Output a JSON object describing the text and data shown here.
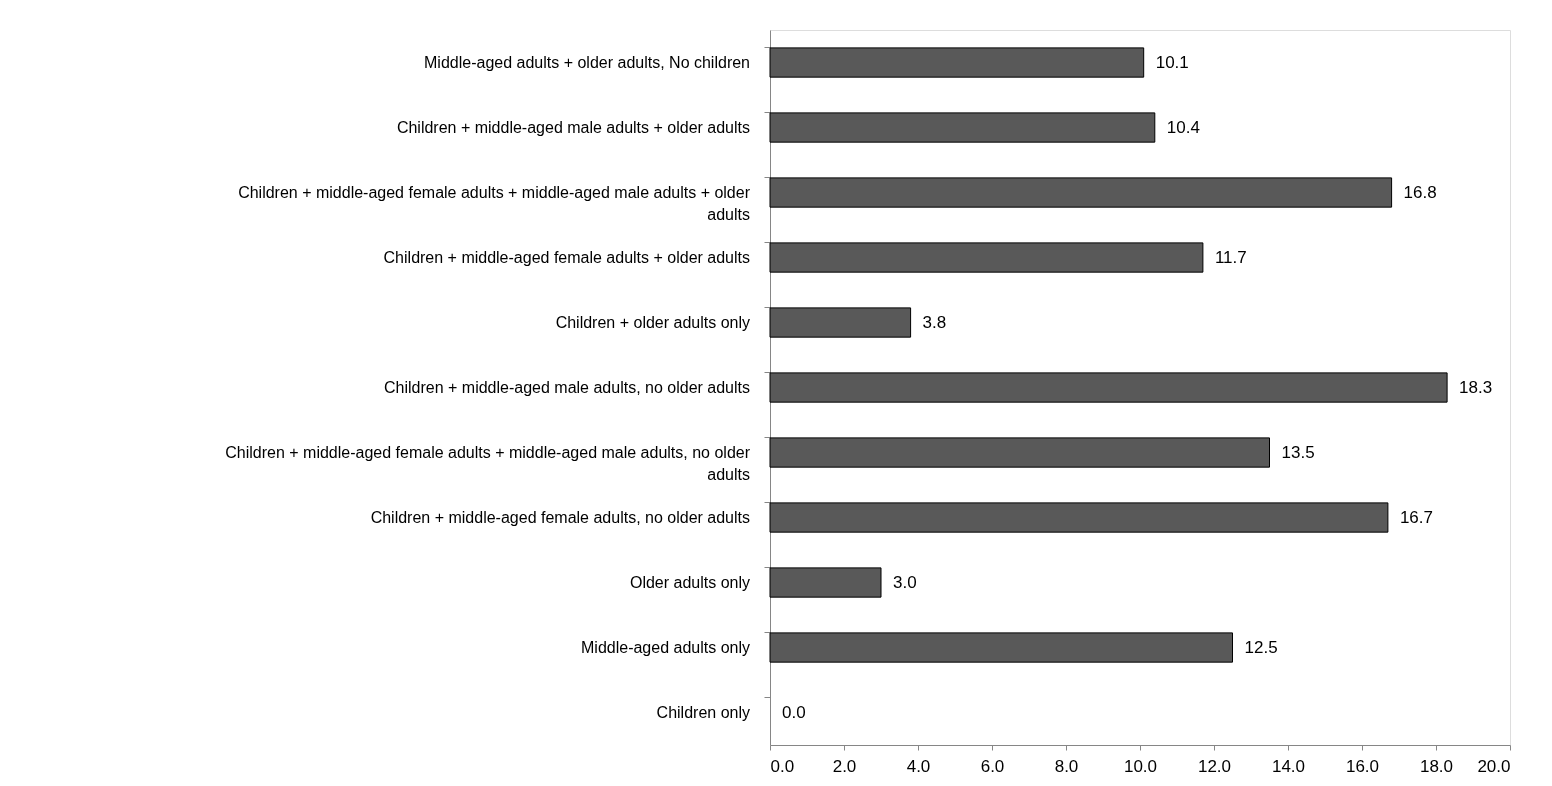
{
  "chart_data": {
    "type": "bar",
    "orientation": "horizontal",
    "categories": [
      "Middle-aged adults + older adults, No children",
      "Children + middle-aged male adults + older adults",
      "Children + middle-aged female adults + middle-aged male adults + older adults",
      "Children + middle-aged female adults + older adults",
      "Children + older adults only",
      "Children + middle-aged male adults, no older adults",
      "Children + middle-aged female adults + middle-aged male adults, no older adults",
      "Children + middle-aged female adults, no older adults",
      "Older adults only",
      "Middle-aged adults only",
      "Children only"
    ],
    "values": [
      10.1,
      10.4,
      16.8,
      11.7,
      3.8,
      18.3,
      13.5,
      16.7,
      3.0,
      12.5,
      0.0
    ],
    "value_labels": [
      "10.1",
      "10.4",
      "16.8",
      "11.7",
      "3.8",
      "18.3",
      "13.5",
      "16.7",
      "3.0",
      "12.5",
      "0.0"
    ],
    "color": "#595959",
    "xlim": [
      0,
      20
    ],
    "xticks": [
      {
        "value": 0,
        "label": "0.0"
      },
      {
        "value": 2,
        "label": "2.0"
      },
      {
        "value": 4,
        "label": "4.0"
      },
      {
        "value": 6,
        "label": "6.0"
      },
      {
        "value": 8,
        "label": "8.0"
      },
      {
        "value": 10,
        "label": "10.0"
      },
      {
        "value": 12,
        "label": "12.0"
      },
      {
        "value": 14,
        "label": "14.0"
      },
      {
        "value": 16,
        "label": "16.0"
      },
      {
        "value": 18,
        "label": "18.0"
      },
      {
        "value": 20,
        "label": "20.0"
      }
    ],
    "grid": false
  }
}
